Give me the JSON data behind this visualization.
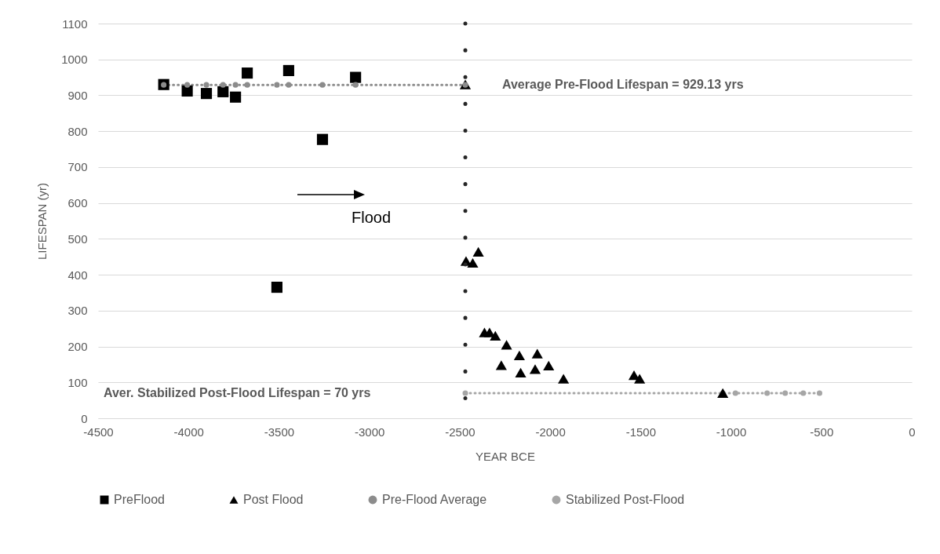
{
  "chart_data": {
    "type": "scatter",
    "xlabel": "YEAR BCE",
    "ylabel": "LIFESPAN (yr)",
    "xlim": [
      -4500,
      0
    ],
    "xticks": [
      -4500,
      -4000,
      -3500,
      -3000,
      -2500,
      -2000,
      -1500,
      -1000,
      -500,
      0
    ],
    "ylim": [
      0,
      1100
    ],
    "yticks": [
      0,
      100,
      200,
      300,
      400,
      500,
      600,
      700,
      800,
      900,
      1000,
      1100
    ],
    "grid": "y",
    "legend": "bottom",
    "series": [
      {
        "name": "PreFlood",
        "type": "scatter",
        "marker": "square",
        "color": "#000000",
        "x": [
          -4137,
          -4007,
          -3901,
          -3809,
          -3740,
          -3675,
          -3511,
          -3446,
          -3259,
          -3076
        ],
        "values": [
          930,
          912,
          905,
          910,
          895,
          962,
          365,
          969,
          777,
          950
        ]
      },
      {
        "name": "Post Flood",
        "type": "scatter",
        "marker": "triangle",
        "color": "#000000",
        "x": [
          -2469,
          -2465,
          -2428,
          -2397,
          -2363,
          -2335,
          -2303,
          -2270,
          -2241,
          -2170,
          -2163,
          -2083,
          -2071,
          -2008,
          -1926,
          -1536,
          -1505,
          -1045
        ],
        "values": [
          930,
          438,
          433,
          464,
          239,
          239,
          230,
          148,
          205,
          175,
          127,
          137,
          180,
          147,
          110,
          120,
          110,
          70
        ]
      },
      {
        "name": "Pre-Flood Average",
        "type": "line",
        "marker": "circle",
        "line_style": "dotted",
        "color": "#8c8c8c",
        "x": [
          -4137,
          -4007,
          -3901,
          -3809,
          -3740,
          -3675,
          -3511,
          -3446,
          -3259,
          -3076,
          -2469
        ],
        "values": [
          929.13,
          929.13,
          929.13,
          929.13,
          929.13,
          929.13,
          929.13,
          929.13,
          929.13,
          929.13,
          929.13
        ]
      },
      {
        "name": "Stabilized Post-Flood",
        "type": "line",
        "marker": "circle",
        "line_style": "dotted",
        "color": "#a6a6a6",
        "x": [
          -2469,
          -1045,
          -975,
          -800,
          -700,
          -600,
          -510
        ],
        "values": [
          70,
          70,
          70,
          70,
          70,
          70,
          70
        ]
      }
    ],
    "ref_lines": [
      {
        "axis": "x",
        "value": -2469,
        "label": null,
        "color": "#262626",
        "line_style": "dotted"
      }
    ],
    "annotations": [
      "Average Pre-Flood Lifespan = 929.13 yrs",
      "Aver. Stabilized Post-Flood Lifespan = 70 yrs",
      "Flood"
    ]
  }
}
